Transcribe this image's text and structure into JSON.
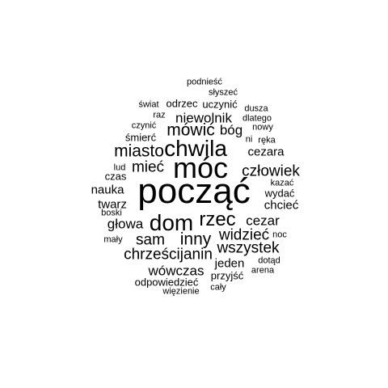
{
  "words": [
    {
      "text": "podnieść",
      "weight": 1
    },
    {
      "text": "słyszeć",
      "weight": 1
    },
    {
      "text": "świat",
      "weight": 1
    },
    {
      "text": "odrzec",
      "weight": 2
    },
    {
      "text": "uczynić",
      "weight": 2
    },
    {
      "text": "dusza",
      "weight": 1
    },
    {
      "text": "raz",
      "weight": 1
    },
    {
      "text": "niewolnik",
      "weight": 3
    },
    {
      "text": "dlatego",
      "weight": 1
    },
    {
      "text": "czynić",
      "weight": 1
    },
    {
      "text": "nowy",
      "weight": 1
    },
    {
      "text": "mówić",
      "weight": 5
    },
    {
      "text": "bóg",
      "weight": 3
    },
    {
      "text": "śmierć",
      "weight": 2
    },
    {
      "text": "ni",
      "weight": 1
    },
    {
      "text": "ręka",
      "weight": 1
    },
    {
      "text": "chwila",
      "weight": 7
    },
    {
      "text": "miasto",
      "weight": 5
    },
    {
      "text": "cezara",
      "weight": 3
    },
    {
      "text": "móc",
      "weight": 9
    },
    {
      "text": "mieć",
      "weight": 4
    },
    {
      "text": "lud",
      "weight": 1
    },
    {
      "text": "człowiek",
      "weight": 4
    },
    {
      "text": "czas",
      "weight": 2
    },
    {
      "text": "kazać",
      "weight": 1
    },
    {
      "text": "nauka",
      "weight": 2
    },
    {
      "text": "począć",
      "weight": 10
    },
    {
      "text": "wydać",
      "weight": 2
    },
    {
      "text": "twarz",
      "weight": 2
    },
    {
      "text": "chcieć",
      "weight": 2
    },
    {
      "text": "boski",
      "weight": 1
    },
    {
      "text": "dom",
      "weight": 7
    },
    {
      "text": "rzec",
      "weight": 6
    },
    {
      "text": "głowa",
      "weight": 3
    },
    {
      "text": "cezar",
      "weight": 3
    },
    {
      "text": "widzieć",
      "weight": 4
    },
    {
      "text": "inny",
      "weight": 5
    },
    {
      "text": "sam",
      "weight": 4
    },
    {
      "text": "noc",
      "weight": 1
    },
    {
      "text": "mały",
      "weight": 1
    },
    {
      "text": "wszystek",
      "weight": 4
    },
    {
      "text": "chrześcijanin",
      "weight": 4
    },
    {
      "text": "jeden",
      "weight": 2
    },
    {
      "text": "dotąd",
      "weight": 1
    },
    {
      "text": "wówczas",
      "weight": 3
    },
    {
      "text": "arena",
      "weight": 1
    },
    {
      "text": "przyjść",
      "weight": 2
    },
    {
      "text": "odpowiedzieć",
      "weight": 2
    },
    {
      "text": "cały",
      "weight": 1
    },
    {
      "text": "więzienie",
      "weight": 1
    }
  ]
}
